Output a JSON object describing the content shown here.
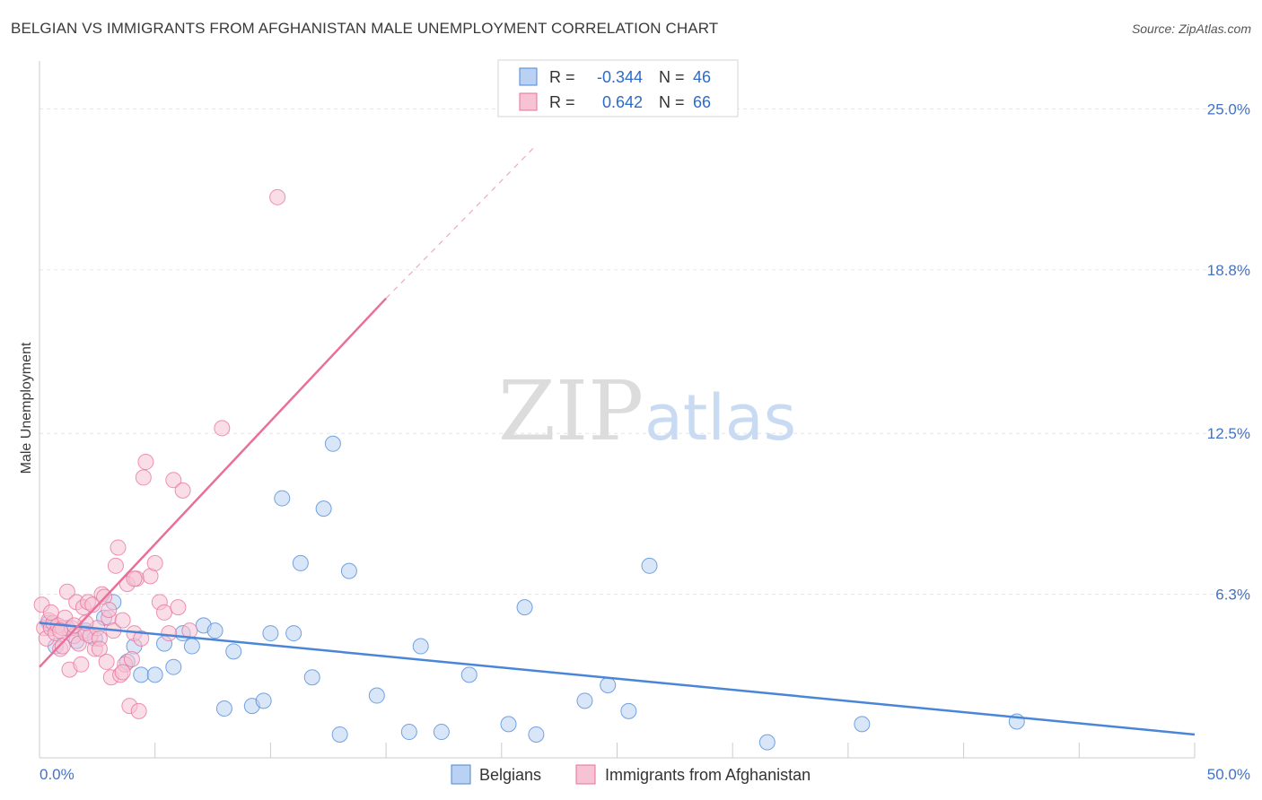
{
  "title": "BELGIAN VS IMMIGRANTS FROM AFGHANISTAN MALE UNEMPLOYMENT CORRELATION CHART",
  "source": "Source: ZipAtlas.com",
  "watermark": {
    "zip": "ZIP",
    "atlas": "atlas"
  },
  "colors": {
    "blue": "#4a86d8",
    "blue_fill": "#b9d1f3",
    "pink": "#e96f9a",
    "pink_fill": "#f6c3d4",
    "axis_text": "#4472c4"
  },
  "chart_data": {
    "type": "scatter",
    "xlabel": "",
    "ylabel": "Male Unemployment",
    "xlim": [
      0,
      50
    ],
    "ylim": [
      0,
      26.5
    ],
    "x_tick_labels": [
      "0.0%",
      "50.0%"
    ],
    "y_ticks": [
      6.3,
      12.5,
      18.8,
      25.0
    ],
    "y_tick_labels": [
      "6.3%",
      "12.5%",
      "18.8%",
      "25.0%"
    ],
    "grid": true,
    "legend": {
      "placement": "top-center",
      "entries": [
        {
          "r_label": "R =",
          "r_value": "-0.344",
          "n_label": "N =",
          "n_value": "46"
        },
        {
          "r_label": "R =",
          "r_value": "0.642",
          "n_label": "N =",
          "n_value": "66"
        }
      ]
    },
    "series": [
      {
        "name": "Belgians",
        "color": "#4a86d8",
        "trend": {
          "x0": 0,
          "y0": 5.2,
          "x1": 50,
          "y1": 0.9
        },
        "points": [
          [
            0.4,
            5.2
          ],
          [
            0.7,
            4.3
          ],
          [
            1.2,
            5.0
          ],
          [
            1.6,
            4.5
          ],
          [
            2.0,
            4.9
          ],
          [
            2.4,
            4.6
          ],
          [
            2.8,
            5.4
          ],
          [
            3.2,
            6.0
          ],
          [
            3.8,
            3.7
          ],
          [
            4.1,
            4.3
          ],
          [
            4.4,
            3.2
          ],
          [
            5.0,
            3.2
          ],
          [
            5.4,
            4.4
          ],
          [
            5.8,
            3.5
          ],
          [
            6.2,
            4.8
          ],
          [
            6.6,
            4.3
          ],
          [
            7.1,
            5.1
          ],
          [
            7.6,
            4.9
          ],
          [
            8.0,
            1.9
          ],
          [
            8.4,
            4.1
          ],
          [
            9.2,
            2.0
          ],
          [
            9.7,
            2.2
          ],
          [
            10.0,
            4.8
          ],
          [
            10.5,
            10.0
          ],
          [
            11.0,
            4.8
          ],
          [
            11.3,
            7.5
          ],
          [
            11.8,
            3.1
          ],
          [
            12.3,
            9.6
          ],
          [
            12.7,
            12.1
          ],
          [
            13.0,
            0.9
          ],
          [
            13.4,
            7.2
          ],
          [
            14.6,
            2.4
          ],
          [
            16.0,
            1.0
          ],
          [
            16.5,
            4.3
          ],
          [
            17.4,
            1.0
          ],
          [
            18.6,
            3.2
          ],
          [
            20.3,
            1.3
          ],
          [
            21.0,
            5.8
          ],
          [
            21.5,
            0.9
          ],
          [
            23.6,
            2.2
          ],
          [
            24.6,
            2.8
          ],
          [
            25.5,
            1.8
          ],
          [
            26.4,
            7.4
          ],
          [
            31.5,
            0.6
          ],
          [
            35.6,
            1.3
          ],
          [
            42.3,
            1.4
          ]
        ]
      },
      {
        "name": "Immigrants from Afghanistan",
        "color": "#e96f9a",
        "trend": {
          "x0": 0,
          "y0": 3.5,
          "x1": 15,
          "y1": 17.7,
          "dash_x1": 21.5,
          "dash_y1": 23.6
        },
        "points": [
          [
            0.1,
            5.9
          ],
          [
            0.2,
            5.0
          ],
          [
            0.3,
            4.6
          ],
          [
            0.4,
            5.3
          ],
          [
            0.5,
            5.0
          ],
          [
            0.6,
            5.2
          ],
          [
            0.7,
            4.8
          ],
          [
            0.8,
            5.1
          ],
          [
            0.9,
            4.2
          ],
          [
            1.0,
            5.0
          ],
          [
            1.1,
            5.4
          ],
          [
            1.2,
            6.4
          ],
          [
            1.3,
            3.4
          ],
          [
            1.4,
            5.0
          ],
          [
            1.5,
            4.7
          ],
          [
            1.6,
            6.0
          ],
          [
            1.7,
            4.4
          ],
          [
            1.8,
            3.6
          ],
          [
            1.9,
            5.8
          ],
          [
            2.0,
            4.8
          ],
          [
            2.1,
            6.0
          ],
          [
            2.2,
            4.7
          ],
          [
            2.3,
            5.9
          ],
          [
            2.4,
            4.2
          ],
          [
            2.5,
            5.0
          ],
          [
            2.6,
            4.6
          ],
          [
            2.7,
            6.3
          ],
          [
            2.8,
            6.2
          ],
          [
            2.9,
            3.7
          ],
          [
            3.0,
            5.4
          ],
          [
            3.1,
            3.1
          ],
          [
            3.2,
            4.9
          ],
          [
            3.3,
            7.4
          ],
          [
            3.4,
            8.1
          ],
          [
            3.5,
            3.2
          ],
          [
            3.6,
            5.3
          ],
          [
            3.7,
            3.6
          ],
          [
            3.8,
            6.7
          ],
          [
            3.9,
            2.0
          ],
          [
            4.0,
            3.8
          ],
          [
            4.1,
            4.8
          ],
          [
            4.2,
            6.9
          ],
          [
            4.3,
            1.8
          ],
          [
            4.4,
            4.6
          ],
          [
            4.5,
            10.8
          ],
          [
            4.6,
            11.4
          ],
          [
            4.8,
            7.0
          ],
          [
            5.0,
            7.5
          ],
          [
            5.2,
            6.0
          ],
          [
            5.4,
            5.6
          ],
          [
            5.6,
            4.8
          ],
          [
            5.8,
            10.7
          ],
          [
            6.0,
            5.8
          ],
          [
            6.2,
            10.3
          ],
          [
            6.5,
            4.9
          ],
          [
            7.9,
            12.7
          ],
          [
            10.3,
            21.6
          ],
          [
            1.0,
            4.3
          ],
          [
            2.0,
            5.2
          ],
          [
            2.6,
            4.2
          ],
          [
            3.0,
            5.7
          ],
          [
            1.5,
            5.1
          ],
          [
            0.9,
            4.9
          ],
          [
            3.6,
            3.3
          ],
          [
            4.1,
            6.9
          ],
          [
            0.5,
            5.6
          ]
        ]
      }
    ]
  }
}
